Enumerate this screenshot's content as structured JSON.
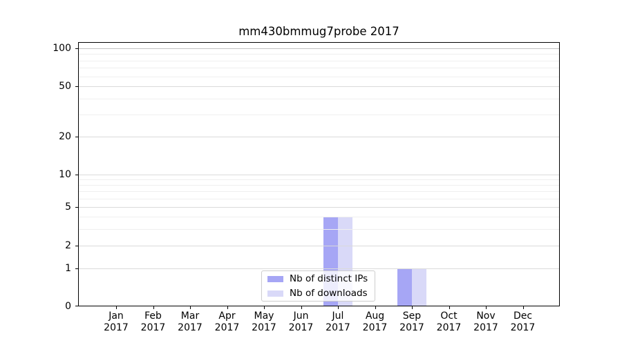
{
  "chart_data": {
    "type": "bar",
    "title": "mm430bmmug7probe 2017",
    "categories": [
      "Jan",
      "Feb",
      "Mar",
      "Apr",
      "May",
      "Jun",
      "Jul",
      "Aug",
      "Sep",
      "Oct",
      "Nov",
      "Dec"
    ],
    "tick_year": "2017",
    "series": [
      {
        "name": "Nb of distinct IPs",
        "color": "#a6a6f5",
        "values": [
          0,
          0,
          0,
          0,
          0,
          0,
          4,
          0,
          1,
          0,
          0,
          0
        ]
      },
      {
        "name": "Nb of downloads",
        "color": "#d9d9f8",
        "values": [
          0,
          0,
          0,
          0,
          0,
          0,
          4,
          0,
          1,
          0,
          0,
          0
        ]
      }
    ],
    "yaxis": {
      "scale": "symlog",
      "tick_labels": [
        100,
        50,
        20,
        10,
        5,
        2,
        1,
        0
      ],
      "range": [
        0,
        115
      ]
    },
    "grid": {
      "major": [
        1,
        2,
        5,
        10,
        20,
        50,
        100
      ],
      "minor": [
        3,
        4,
        6,
        7,
        8,
        9,
        30,
        40,
        60,
        70,
        80,
        90
      ]
    },
    "legend": {
      "entries": [
        "Nb of distinct IPs",
        "Nb of downloads"
      ],
      "position": "lower center"
    },
    "colors": {
      "major_grid": "#dadada",
      "top_major_grid": "#c0c0c0",
      "minor_grid": "#efefef",
      "spine": "#000000",
      "background": "#ffffff"
    }
  }
}
